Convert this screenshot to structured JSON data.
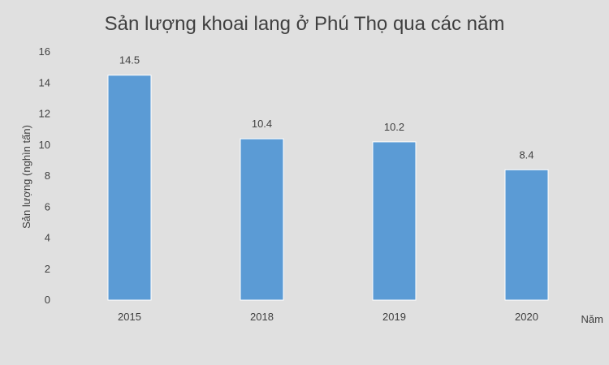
{
  "chart_data": {
    "type": "bar",
    "title": "Sản lượng khoai lang ở Phú Thọ qua các năm",
    "xlabel": "Năm",
    "ylabel": "Sản lượng (nghìn tấn)",
    "categories": [
      "2015",
      "2018",
      "2019",
      "2020"
    ],
    "values": [
      14.5,
      10.4,
      10.2,
      8.4
    ],
    "data_labels": [
      "14.5",
      "10.4",
      "10.2",
      "8.4"
    ],
    "ylim": [
      0,
      16
    ],
    "yticks": [
      0,
      2,
      4,
      6,
      8,
      10,
      12,
      14,
      16
    ],
    "grid": false,
    "legend": "none",
    "bar_color": "#5b9bd5",
    "bar_edge_color": "#ffffff"
  }
}
